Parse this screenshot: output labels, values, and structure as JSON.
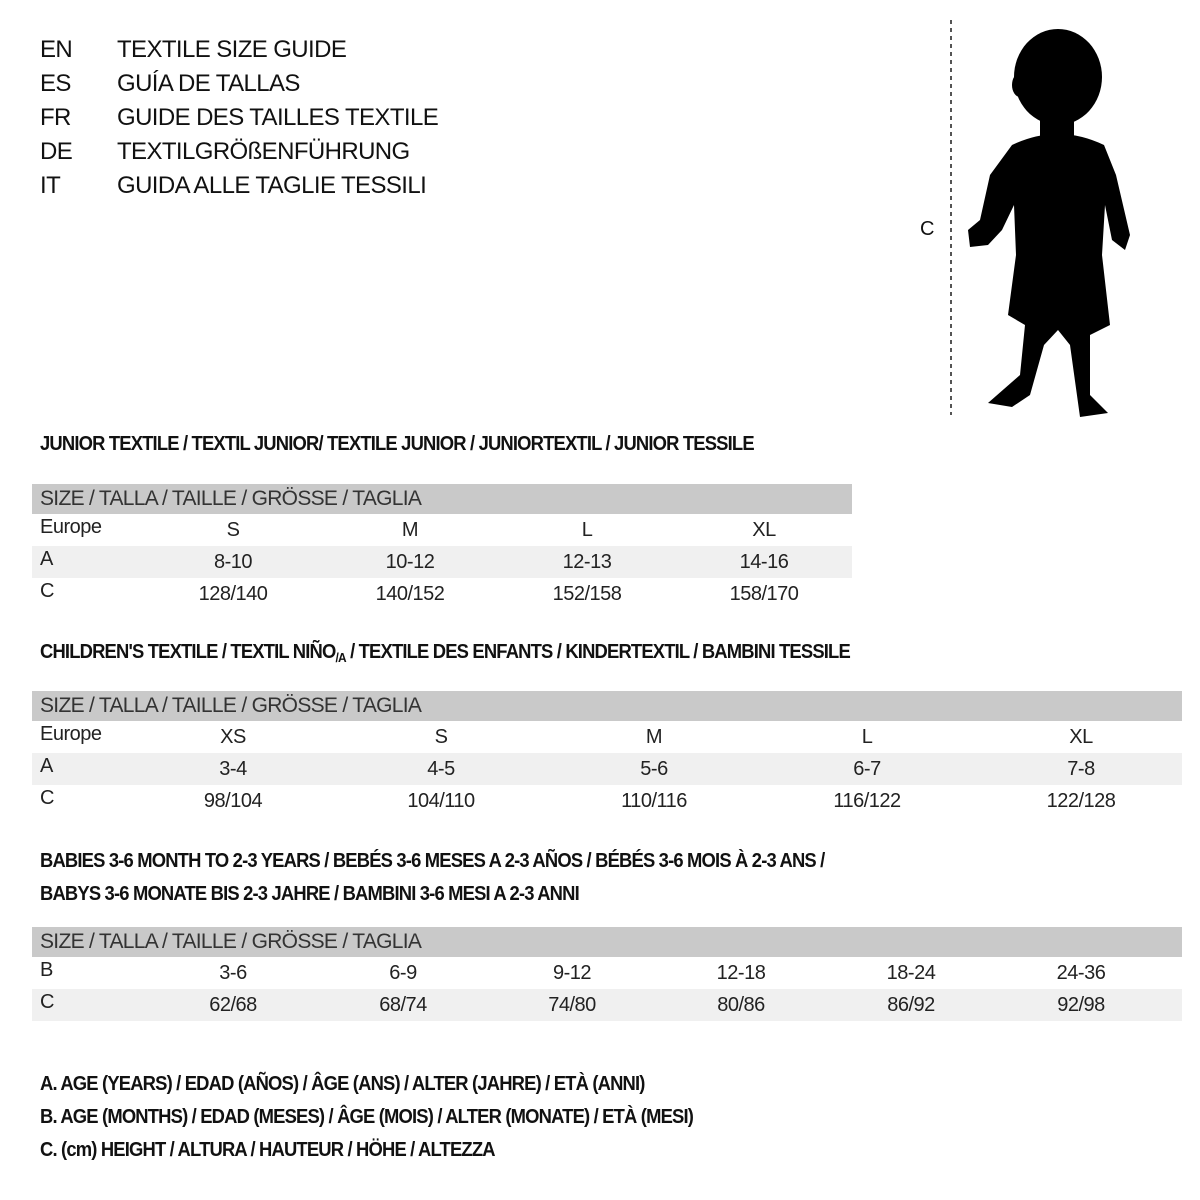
{
  "languages": [
    {
      "code": "EN",
      "title": "TEXTILE SIZE GUIDE"
    },
    {
      "code": "ES",
      "title": "GUÍA DE TALLAS"
    },
    {
      "code": "FR",
      "title": "GUIDE DES TAILLES TEXTILE"
    },
    {
      "code": "DE",
      "title": "TEXTILGRÖßENFÜHRUNG"
    },
    {
      "code": "IT",
      "title": "GUIDA ALLE TAGLIE TESSILI"
    }
  ],
  "figure": {
    "label": "C",
    "icon": "child-silhouette-icon"
  },
  "size_header": "SIZE / TALLA / TAILLE / GRÖSSE / TAGLIA",
  "junior": {
    "title": "JUNIOR TEXTILE / TEXTIL JUNIOR/ TEXTILE JUNIOR / JUNIORTEXTIL / JUNIOR TESSILE",
    "rows": [
      {
        "label": "Europe",
        "values": [
          "S",
          "M",
          "L",
          "XL"
        ]
      },
      {
        "label": "A",
        "values": [
          "8-10",
          "10-12",
          "12-13",
          "14-16"
        ]
      },
      {
        "label": "C",
        "values": [
          "128/140",
          "140/152",
          "152/158",
          "158/170"
        ]
      }
    ]
  },
  "children": {
    "title_part1": "CHILDREN'S TEXTILE / TEXTIL NIÑO",
    "title_sub": "/A",
    "title_part2": " / TEXTILE DES ENFANTS / KINDERTEXTIL / BAMBINI TESSILE",
    "rows": [
      {
        "label": "Europe",
        "values": [
          "XS",
          "S",
          "M",
          "L",
          "XL"
        ]
      },
      {
        "label": "A",
        "values": [
          "3-4",
          "4-5",
          "5-6",
          "6-7",
          "7-8"
        ]
      },
      {
        "label": "C",
        "values": [
          "98/104",
          "104/110",
          "110/116",
          "116/122",
          "122/128"
        ]
      }
    ]
  },
  "babies": {
    "title_line1": "BABIES 3-6 MONTH TO 2-3 YEARS / BEBÉS 3-6 MESES A 2-3 AÑOS / BÉBÉS 3-6 MOIS À 2-3 ANS /",
    "title_line2": "BABYS 3-6 MONATE BIS 2-3 JAHRE / BAMBINI 3-6 MESI A 2-3 ANNI",
    "rows": [
      {
        "label": "B",
        "values": [
          "3-6",
          "6-9",
          "9-12",
          "12-18",
          "18-24",
          "24-36"
        ]
      },
      {
        "label": "C",
        "values": [
          "62/68",
          "68/74",
          "74/80",
          "80/86",
          "86/92",
          "92/98"
        ]
      }
    ]
  },
  "legend": [
    "A. AGE (YEARS) / EDAD (AÑOS) / ÂGE (ANS) / ALTER (JAHRE) / ETÀ (ANNI)",
    "B. AGE (MONTHS) / EDAD (MESES) / ÂGE (MOIS) / ALTER (MONATE) / ETÀ (MESI)",
    "C. (cm) HEIGHT / ALTURA / HAUTEUR / HÖHE / ALTEZZA"
  ],
  "colors": {
    "header_bg": "#c9c9c9",
    "row_shade": "#f0f0f0",
    "text": "#111111"
  }
}
